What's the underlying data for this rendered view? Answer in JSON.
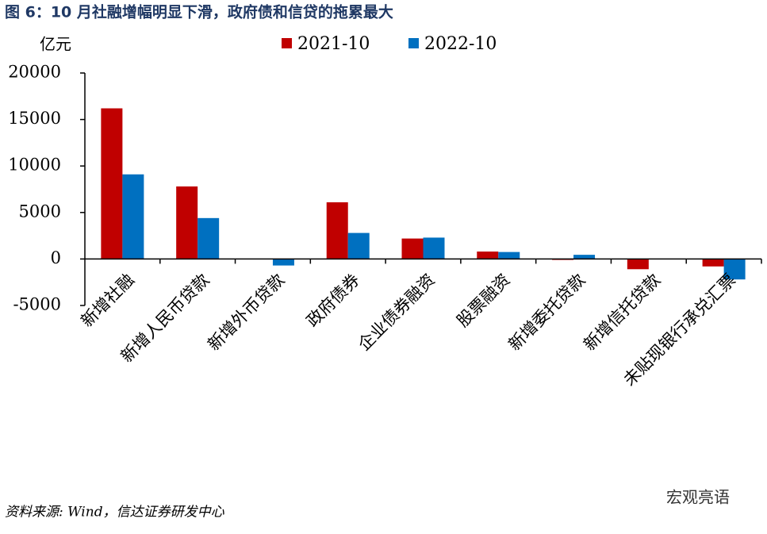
{
  "chart_data": {
    "type": "bar",
    "title": "图 6：10 月社融增幅明显下滑，政府债和信贷的拖累最大",
    "y_label": "亿元",
    "categories": [
      "新增社融",
      "新增人民币贷款",
      "新增外币贷款",
      "政府债券",
      "企业债券融资",
      "股票融资",
      "新增委托贷款",
      "新增信托贷款",
      "未贴现银行承兑汇票"
    ],
    "series": [
      {
        "name": "2021-10",
        "color": "#c00000",
        "values": [
          16200,
          7800,
          0,
          6100,
          2200,
          800,
          -100,
          -1100,
          -800
        ]
      },
      {
        "name": "2022-10",
        "color": "#0070c0",
        "values": [
          9100,
          4400,
          -700,
          2800,
          2300,
          750,
          450,
          0,
          -2200
        ]
      }
    ],
    "ylim": [
      -5000,
      20000
    ],
    "yticks": [
      -5000,
      0,
      5000,
      10000,
      15000,
      20000
    ],
    "grid": false,
    "source": "资料来源: Wind，信达证券研发中心",
    "watermark": "宏观亮语"
  }
}
